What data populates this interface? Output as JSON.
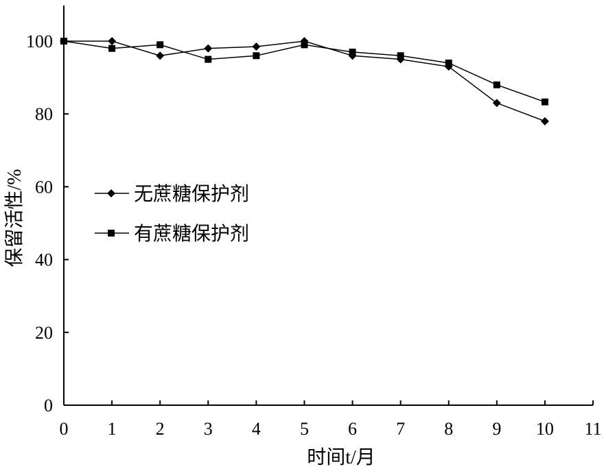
{
  "chart_data": {
    "type": "line",
    "xlabel": "时间t/月",
    "ylabel": "保留活性/%",
    "xlim": [
      0,
      11
    ],
    "ylim": [
      0,
      100
    ],
    "xticks": [
      "0",
      "1",
      "2",
      "3",
      "4",
      "5",
      "6",
      "7",
      "8",
      "9",
      "10",
      "11"
    ],
    "yticks": [
      "0",
      "20",
      "40",
      "60",
      "80",
      "100"
    ],
    "grid": false,
    "legend_position": "center-left",
    "x": [
      0,
      1,
      2,
      3,
      4,
      5,
      6,
      7,
      8,
      9,
      10
    ],
    "series": [
      {
        "name": "无蔗糖保护剂",
        "marker": "diamond",
        "values": [
          100,
          100,
          96,
          98,
          98.5,
          100,
          96,
          95,
          93,
          83,
          78
        ]
      },
      {
        "name": "有蔗糖保护剂",
        "marker": "square",
        "values": [
          100,
          98,
          99,
          95,
          96,
          99,
          97,
          96,
          94,
          88,
          83.3
        ]
      }
    ]
  }
}
